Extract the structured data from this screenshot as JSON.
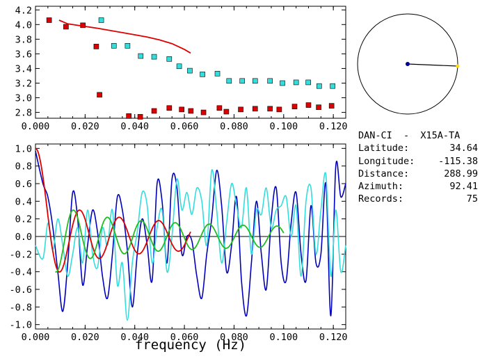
{
  "station": {
    "title": "DAN-CI  -  X15A-TA",
    "rows": [
      {
        "label": "Latitude:",
        "value": "34.64"
      },
      {
        "label": "Longitude:",
        "value": "-115.38"
      },
      {
        "label": "Distance:",
        "value": "288.99"
      },
      {
        "label": "Azimuth:",
        "value": "92.41"
      },
      {
        "label": "Records:",
        "value": "75"
      }
    ]
  },
  "colors": {
    "red": "#dd0000",
    "cyan": "#33dddd",
    "blue": "#0000bb",
    "green": "#22bb22",
    "azimuth_dot": "#ffdd00"
  },
  "chart_data": [
    {
      "type": "scatter",
      "name": "top-dispersion-panel",
      "xlim": [
        0.0,
        0.125
      ],
      "ylim": [
        2.72,
        4.25
      ],
      "xticks": [
        "0.000",
        "0.020",
        "0.040",
        "0.060",
        "0.080",
        "0.100",
        "0.120"
      ],
      "yticks": [
        "2.8",
        "3.0",
        "3.2",
        "3.4",
        "3.6",
        "3.8",
        "4.0",
        "4.2"
      ],
      "series": [
        {
          "color": "red",
          "marker": "square",
          "x": [
            0.0055,
            0.0123,
            0.0191,
            0.0245,
            0.0258,
            0.0376,
            0.0422,
            0.0478,
            0.0539,
            0.0589,
            0.0626,
            0.0677,
            0.0741,
            0.0769,
            0.0827,
            0.0885,
            0.0945,
            0.0982,
            0.1044,
            0.11,
            0.1141,
            0.1193
          ],
          "y": [
            4.06,
            3.97,
            3.99,
            3.7,
            3.04,
            2.75,
            2.74,
            2.82,
            2.86,
            2.84,
            2.82,
            2.8,
            2.86,
            2.81,
            2.84,
            2.85,
            2.85,
            2.84,
            2.88,
            2.9,
            2.87,
            2.89
          ]
        },
        {
          "color": "cyan",
          "marker": "square",
          "x": [
            0.0265,
            0.0316,
            0.0371,
            0.0424,
            0.0478,
            0.0539,
            0.0579,
            0.0622,
            0.0673,
            0.0733,
            0.078,
            0.0833,
            0.0885,
            0.0945,
            0.0995,
            0.105,
            0.1099,
            0.1143,
            0.1197
          ],
          "y": [
            4.06,
            3.71,
            3.71,
            3.57,
            3.56,
            3.53,
            3.43,
            3.37,
            3.32,
            3.33,
            3.23,
            3.23,
            3.23,
            3.23,
            3.2,
            3.21,
            3.21,
            3.16,
            3.16
          ]
        },
        {
          "color": "red",
          "marker": "line",
          "x": [
            0.0095,
            0.013,
            0.017,
            0.021,
            0.025,
            0.03,
            0.035,
            0.04,
            0.045,
            0.05,
            0.055,
            0.06,
            0.0625
          ],
          "y": [
            4.06,
            4.01,
            3.99,
            3.97,
            3.95,
            3.92,
            3.89,
            3.86,
            3.83,
            3.79,
            3.74,
            3.66,
            3.61
          ]
        }
      ]
    },
    {
      "type": "line",
      "name": "bottom-correlation-panel",
      "xlabel": "frequency (Hz)",
      "xlim": [
        0.0,
        0.125
      ],
      "ylim": [
        -1.05,
        1.05
      ],
      "xticks": [
        "0.000",
        "0.020",
        "0.040",
        "0.060",
        "0.080",
        "0.100",
        "0.120"
      ],
      "yticks": [
        "1.0",
        "0.8",
        "0.6",
        "0.4",
        "0.2",
        "0.0",
        "-0.2",
        "-0.4",
        "-0.6",
        "-0.8",
        "-1.0"
      ],
      "series": [
        {
          "color": "red",
          "curve": "bessel",
          "omega": 395.0,
          "xmax": 0.0625
        },
        {
          "color": "green",
          "curve": "bessel",
          "omega": 460.0,
          "xmin": 0.008,
          "xmax": 0.1
        },
        {
          "color": "blue",
          "curve": "noisy",
          "x": [
            0.0,
            0.003,
            0.005,
            0.007,
            0.009,
            0.011,
            0.013,
            0.015,
            0.017,
            0.019,
            0.021,
            0.023,
            0.025,
            0.027,
            0.029,
            0.031,
            0.033,
            0.035,
            0.037,
            0.039,
            0.041,
            0.043,
            0.045,
            0.047,
            0.049,
            0.051,
            0.053,
            0.055,
            0.057,
            0.059,
            0.061,
            0.063,
            0.065,
            0.067,
            0.069,
            0.071,
            0.073,
            0.075,
            0.077,
            0.079,
            0.081,
            0.083,
            0.085,
            0.087,
            0.089,
            0.091,
            0.093,
            0.095,
            0.097,
            0.099,
            0.101,
            0.103,
            0.105,
            0.107,
            0.109,
            0.111,
            0.113,
            0.115,
            0.117,
            0.119,
            0.121,
            0.123,
            0.125
          ],
          "y": [
            0.97,
            0.6,
            0.45,
            0.1,
            -0.4,
            -0.85,
            -0.3,
            0.5,
            0.2,
            -0.55,
            -0.1,
            0.3,
            0.05,
            -0.45,
            -0.7,
            -0.2,
            0.45,
            0.3,
            -0.15,
            -0.8,
            -0.2,
            0.2,
            -0.1,
            -0.5,
            0.6,
            0.4,
            -0.3,
            0.65,
            0.55,
            -0.2,
            0.0,
            -0.05,
            -0.45,
            -0.7,
            -0.2,
            0.2,
            0.75,
            0.35,
            -0.4,
            -0.1,
            0.45,
            -0.5,
            -0.9,
            -0.3,
            0.4,
            -0.2,
            -0.6,
            0.2,
            0.55,
            -0.3,
            -0.5,
            0.15,
            0.5,
            -0.2,
            -0.5,
            0.35,
            -0.3,
            -0.2,
            0.6,
            -0.9,
            0.8,
            0.45,
            0.6
          ]
        },
        {
          "color": "cyan",
          "curve": "noisy",
          "x": [
            0.0,
            0.003,
            0.005,
            0.007,
            0.009,
            0.011,
            0.013,
            0.015,
            0.017,
            0.019,
            0.021,
            0.023,
            0.025,
            0.027,
            0.029,
            0.031,
            0.033,
            0.035,
            0.037,
            0.039,
            0.041,
            0.043,
            0.045,
            0.047,
            0.049,
            0.051,
            0.053,
            0.055,
            0.057,
            0.059,
            0.061,
            0.063,
            0.065,
            0.067,
            0.069,
            0.071,
            0.073,
            0.075,
            0.077,
            0.079,
            0.081,
            0.083,
            0.085,
            0.087,
            0.089,
            0.091,
            0.093,
            0.095,
            0.097,
            0.099,
            0.101,
            0.103,
            0.105,
            0.107,
            0.109,
            0.111,
            0.113,
            0.115,
            0.117,
            0.119,
            0.121,
            0.123,
            0.125
          ],
          "y": [
            -0.1,
            -0.25,
            0.15,
            -0.15,
            0.2,
            -0.1,
            -0.45,
            -0.2,
            0.1,
            -0.3,
            0.3,
            -0.2,
            -0.35,
            0.1,
            -0.1,
            0.3,
            -0.55,
            -0.3,
            -0.95,
            -0.3,
            0.05,
            0.5,
            0.35,
            -0.3,
            0.1,
            0.3,
            -0.4,
            0.0,
            0.65,
            0.3,
            0.5,
            0.25,
            0.55,
            0.4,
            -0.1,
            0.75,
            0.3,
            -0.3,
            0.15,
            0.6,
            0.35,
            0.1,
            0.55,
            -0.2,
            0.3,
            0.25,
            0.55,
            0.1,
            0.3,
            0.35,
            0.45,
            0.0,
            0.35,
            -0.45,
            0.4,
            0.55,
            -0.2,
            0.3,
            0.7,
            -0.45,
            0.3,
            -0.4,
            -0.1
          ]
        }
      ]
    }
  ]
}
